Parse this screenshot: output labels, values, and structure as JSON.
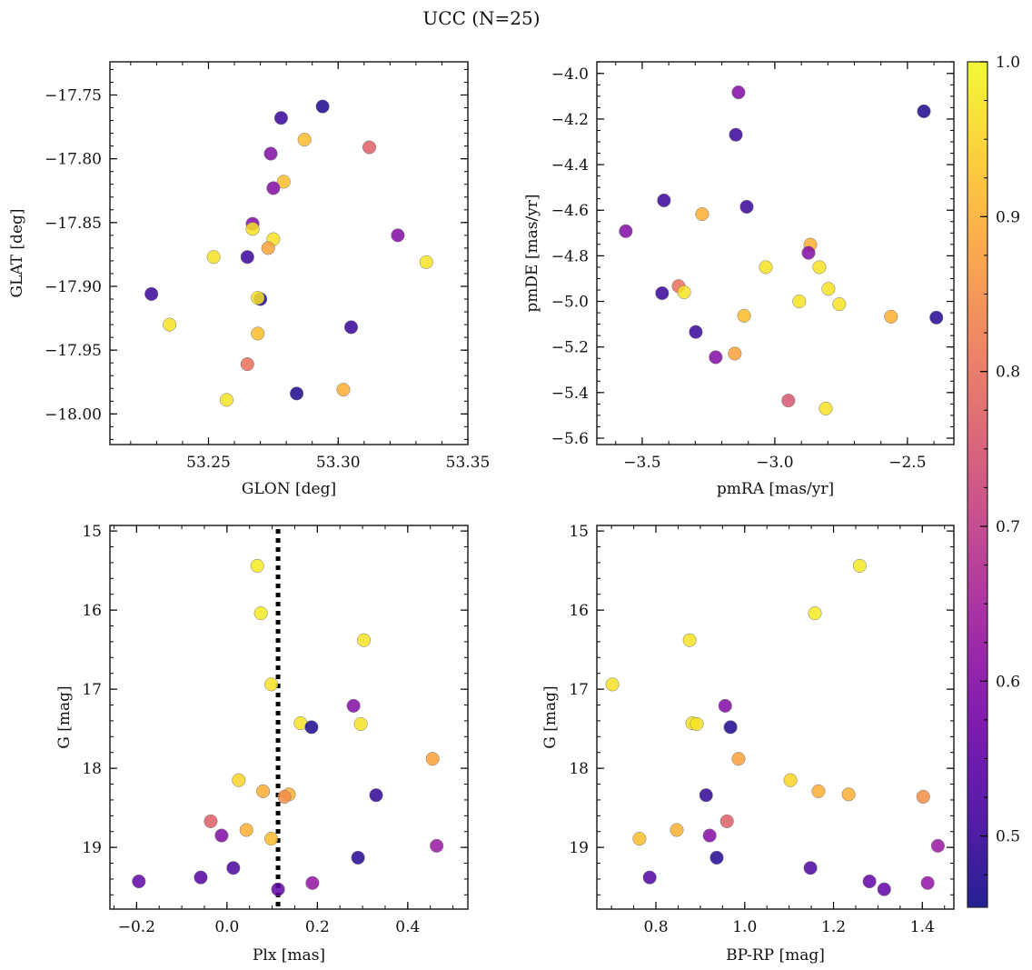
{
  "title": "UCC (N=25)",
  "colorbar": {
    "min": 0.454,
    "max": 1.0,
    "ticks": [
      0.5,
      0.6,
      0.7,
      0.8,
      0.9,
      1.0
    ],
    "labels": [
      "0.5",
      "0.6",
      "0.7",
      "0.8",
      "0.9",
      "1.0"
    ],
    "minor_step": 0.025,
    "colormap": "plasma"
  },
  "chart_data": [
    {
      "type": "scatter",
      "title": "",
      "xlabel": "GLON [deg]",
      "ylabel": "GLAT [deg]",
      "xlim": [
        53.212,
        53.35
      ],
      "ylim": [
        -18.024,
        -17.724
      ],
      "xticks": [
        53.25,
        53.3,
        53.35
      ],
      "xticklabels": [
        "53.25",
        "53.30",
        "53.35"
      ],
      "xminor": 0.01,
      "yticks": [
        -17.75,
        -17.8,
        -17.85,
        -17.9,
        -17.95,
        -18.0
      ],
      "yticklabels": [
        "−17.75",
        "−17.80",
        "−17.85",
        "−17.90",
        "−17.95",
        "−18.00"
      ],
      "yminor": 0.01,
      "x": [
        53.294,
        53.278,
        53.287,
        53.312,
        53.274,
        53.279,
        53.275,
        53.267,
        53.267,
        53.275,
        53.273,
        53.323,
        53.252,
        53.265,
        53.334,
        53.228,
        53.27,
        53.269,
        53.305,
        53.235,
        53.269,
        53.265,
        53.302,
        53.284,
        53.257
      ],
      "y": [
        -17.759,
        -17.768,
        -17.785,
        -17.791,
        -17.796,
        -17.818,
        -17.823,
        -17.851,
        -17.855,
        -17.863,
        -17.87,
        -17.86,
        -17.877,
        -17.877,
        -17.881,
        -17.906,
        -17.91,
        -17.909,
        -17.932,
        -17.93,
        -17.937,
        -17.961,
        -17.981,
        -17.984,
        -17.989
      ],
      "p": [
        0.47,
        0.5,
        0.92,
        0.77,
        0.6,
        0.92,
        0.6,
        0.6,
        0.97,
        0.97,
        0.88,
        0.6,
        0.97,
        0.5,
        0.97,
        0.5,
        0.47,
        0.97,
        0.5,
        0.97,
        0.92,
        0.8,
        0.9,
        0.47,
        0.97
      ]
    },
    {
      "type": "scatter",
      "title": "",
      "xlabel": "pmRA [mas/yr]",
      "ylabel": "pmDE [mas/yr]",
      "xlim": [
        -3.671,
        -2.325
      ],
      "ylim": [
        -5.628,
        -3.949
      ],
      "xticks": [
        -3.5,
        -3.0,
        -2.5
      ],
      "xticklabels": [
        "−3.5",
        "−3.0",
        "−2.5"
      ],
      "xminor": 0.1,
      "yticks": [
        -4.0,
        -4.2,
        -4.4,
        -4.6,
        -4.8,
        -5.0,
        -5.2,
        -5.4,
        -5.6
      ],
      "yticklabels": [
        "−4.0",
        "−4.2",
        "−4.4",
        "−4.6",
        "−4.8",
        "−5.0",
        "−5.2",
        "−5.4",
        "−5.6"
      ],
      "yminor": 0.05,
      "x": [
        -3.137,
        -2.438,
        -3.147,
        -3.418,
        -3.106,
        -3.274,
        -3.562,
        -2.866,
        -2.873,
        -3.034,
        -2.832,
        -3.363,
        -3.425,
        -3.342,
        -2.798,
        -2.908,
        -2.757,
        -3.116,
        -2.562,
        -2.391,
        -3.298,
        -3.151,
        -3.223,
        -2.949,
        -2.808
      ],
      "y": [
        -4.083,
        -4.166,
        -4.269,
        -4.557,
        -4.585,
        -4.617,
        -4.692,
        -4.751,
        -4.787,
        -4.85,
        -4.85,
        -4.933,
        -4.964,
        -4.96,
        -4.945,
        -5.0,
        -5.012,
        -5.063,
        -5.067,
        -5.071,
        -5.134,
        -5.229,
        -5.245,
        -5.435,
        -5.47
      ],
      "p": [
        0.6,
        0.47,
        0.5,
        0.5,
        0.5,
        0.9,
        0.6,
        0.9,
        0.6,
        0.97,
        0.97,
        0.8,
        0.5,
        0.97,
        0.97,
        0.97,
        0.97,
        0.92,
        0.9,
        0.48,
        0.5,
        0.88,
        0.6,
        0.75,
        0.97
      ]
    },
    {
      "type": "scatter",
      "title": "",
      "xlabel": "Plx [mas]",
      "ylabel": "G [mag]",
      "xlim": [
        -0.259,
        0.533
      ],
      "ylim": [
        19.78,
        14.93
      ],
      "xticks": [
        -0.2,
        0.0,
        0.2,
        0.4
      ],
      "xticklabels": [
        "−0.2",
        "0.0",
        "0.2",
        "0.4"
      ],
      "xminor": 0.05,
      "yticks": [
        15,
        16,
        17,
        18,
        19
      ],
      "yticklabels": [
        "15",
        "16",
        "17",
        "18",
        "19"
      ],
      "yminor": 0.2,
      "vline": 0.113,
      "x": [
        0.067,
        0.075,
        0.303,
        0.098,
        0.28,
        0.163,
        0.296,
        0.187,
        0.455,
        0.026,
        0.08,
        0.137,
        0.127,
        0.33,
        -0.036,
        0.043,
        -0.012,
        0.098,
        0.464,
        0.29,
        0.014,
        -0.058,
        -0.195,
        0.113,
        0.189
      ],
      "y": [
        15.44,
        16.04,
        16.38,
        16.94,
        17.21,
        17.43,
        17.44,
        17.48,
        17.88,
        18.15,
        18.29,
        18.33,
        18.36,
        18.34,
        18.67,
        18.78,
        18.85,
        18.89,
        18.98,
        19.13,
        19.26,
        19.38,
        19.43,
        19.53,
        19.45
      ],
      "p": [
        0.98,
        0.98,
        0.97,
        0.97,
        0.6,
        0.97,
        0.97,
        0.47,
        0.88,
        0.95,
        0.9,
        0.9,
        0.85,
        0.49,
        0.77,
        0.9,
        0.6,
        0.92,
        0.63,
        0.48,
        0.52,
        0.53,
        0.55,
        0.55,
        0.62
      ]
    },
    {
      "type": "scatter",
      "title": "",
      "xlabel": "BP-RP [mag]",
      "ylabel": "G [mag]",
      "xlim": [
        0.667,
        1.471
      ],
      "ylim": [
        19.78,
        14.93
      ],
      "xticks": [
        0.8,
        1.0,
        1.2,
        1.4
      ],
      "xticklabels": [
        "0.8",
        "1.0",
        "1.2",
        "1.4"
      ],
      "xminor": 0.05,
      "yticks": [
        15,
        16,
        17,
        18,
        19
      ],
      "yticklabels": [
        "15",
        "16",
        "17",
        "18",
        "19"
      ],
      "yminor": 0.2,
      "x": [
        1.259,
        1.158,
        0.876,
        0.702,
        0.956,
        0.882,
        0.892,
        0.968,
        0.986,
        1.103,
        1.166,
        1.234,
        1.402,
        0.913,
        0.96,
        0.847,
        0.921,
        0.763,
        1.435,
        0.937,
        1.148,
        0.786,
        1.281,
        1.314,
        1.412
      ],
      "y": [
        15.44,
        16.04,
        16.38,
        16.94,
        17.21,
        17.43,
        17.44,
        17.48,
        17.88,
        18.15,
        18.29,
        18.33,
        18.36,
        18.34,
        18.67,
        18.78,
        18.85,
        18.89,
        18.98,
        19.13,
        19.26,
        19.38,
        19.43,
        19.53,
        19.45
      ],
      "p": [
        0.98,
        0.98,
        0.97,
        0.97,
        0.6,
        0.97,
        0.97,
        0.47,
        0.88,
        0.95,
        0.9,
        0.9,
        0.85,
        0.49,
        0.77,
        0.9,
        0.6,
        0.92,
        0.63,
        0.48,
        0.52,
        0.53,
        0.55,
        0.55,
        0.62
      ]
    }
  ]
}
